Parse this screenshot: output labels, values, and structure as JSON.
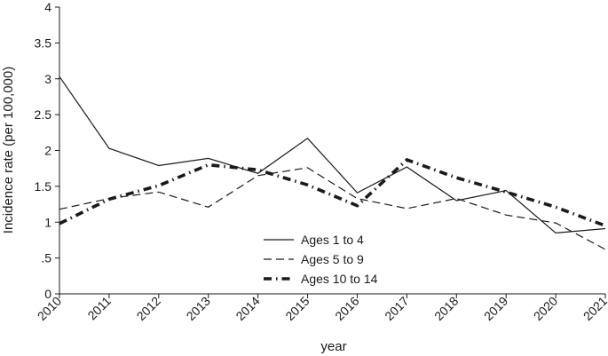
{
  "chart_data": {
    "type": "line",
    "xlabel": "year",
    "ylabel": "Incidence rate (per 100,000)",
    "x": [
      2010,
      2011,
      2012,
      2013,
      2014,
      2015,
      2016,
      2017,
      2018,
      2019,
      2020,
      2021
    ],
    "x_tick_labels": [
      "2010",
      "2011",
      "2012",
      "2013",
      "2014",
      "2015",
      "2016",
      "2017",
      "2018",
      "2019",
      "2020",
      "2021"
    ],
    "ylim": [
      0,
      4
    ],
    "y_ticks": [
      0,
      0.5,
      1,
      1.5,
      2,
      2.5,
      3,
      3.5,
      4
    ],
    "y_tick_labels": [
      "0",
      ".5",
      "1",
      "1.5",
      "2",
      "2.5",
      "3",
      "3.5",
      "4"
    ],
    "grid": false,
    "legend_position": "bottom-center",
    "series": [
      {
        "name": "Ages 1 to 4",
        "style": "solid",
        "color": "#1a1a1a",
        "values": [
          3.03,
          2.03,
          1.79,
          1.89,
          1.68,
          2.17,
          1.41,
          1.77,
          1.3,
          1.44,
          0.85,
          0.91
        ]
      },
      {
        "name": "Ages 5 to 9",
        "style": "dashed",
        "color": "#1a1a1a",
        "values": [
          1.18,
          1.33,
          1.42,
          1.21,
          1.65,
          1.76,
          1.33,
          1.19,
          1.33,
          1.1,
          0.99,
          0.62
        ]
      },
      {
        "name": "Ages 10 to 14",
        "style": "dash-dot",
        "color": "#1a1a1a",
        "values": [
          0.98,
          1.32,
          1.51,
          1.8,
          1.73,
          1.52,
          1.23,
          1.87,
          1.62,
          1.42,
          1.21,
          0.95
        ]
      }
    ]
  }
}
